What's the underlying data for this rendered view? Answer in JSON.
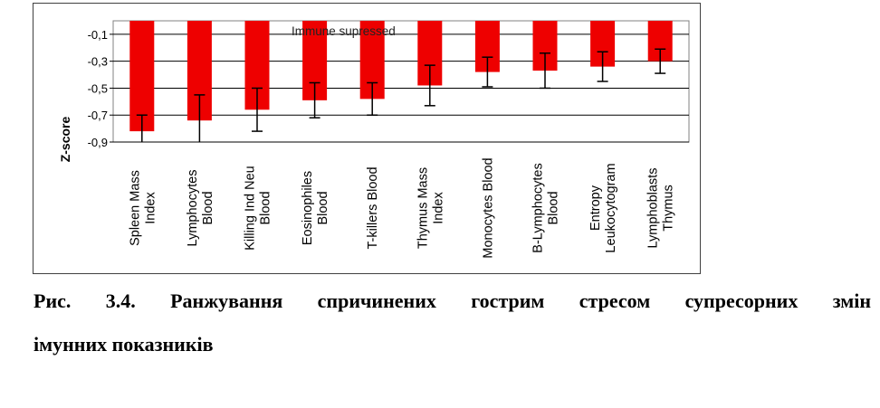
{
  "caption": {
    "line1": "Рис. 3.4. Ранжування спричинених гострим стресом супресорних змін",
    "line2": "імунних показників"
  },
  "chart_data": {
    "type": "bar",
    "ylabel": "Z-score",
    "annotation": "Immune supressed",
    "ylim": [
      -0.9,
      0.0
    ],
    "yticks": [
      -0.1,
      -0.3,
      -0.5,
      -0.7,
      -0.9
    ],
    "ytick_labels": [
      "-0,1",
      "-0,3",
      "-0,5",
      "-0,7",
      "-0,9"
    ],
    "grid": true,
    "categories": [
      [
        "Spleen Mass",
        "Index"
      ],
      [
        "Lymphocytes",
        "Blood"
      ],
      [
        "Killing Ind Neu",
        "Blood"
      ],
      [
        "Eosinophiles",
        "Blood"
      ],
      [
        "T-killers Blood"
      ],
      [
        "Thymus Mass",
        "Index"
      ],
      [
        "Monocytes Blood"
      ],
      [
        "B-Lymphocytes",
        "Blood"
      ],
      [
        "Entropy",
        "Leukocytogram"
      ],
      [
        "Lymphoblasts",
        "Thymus"
      ]
    ],
    "values": [
      -0.82,
      -0.74,
      -0.66,
      -0.59,
      -0.58,
      -0.48,
      -0.38,
      -0.37,
      -0.34,
      -0.3
    ],
    "errors": [
      0.12,
      0.19,
      0.16,
      0.13,
      0.12,
      0.15,
      0.11,
      0.13,
      0.11,
      0.09
    ],
    "colors": {
      "bar": "#ee0000",
      "error": "#000000",
      "grid": "#000000"
    }
  }
}
